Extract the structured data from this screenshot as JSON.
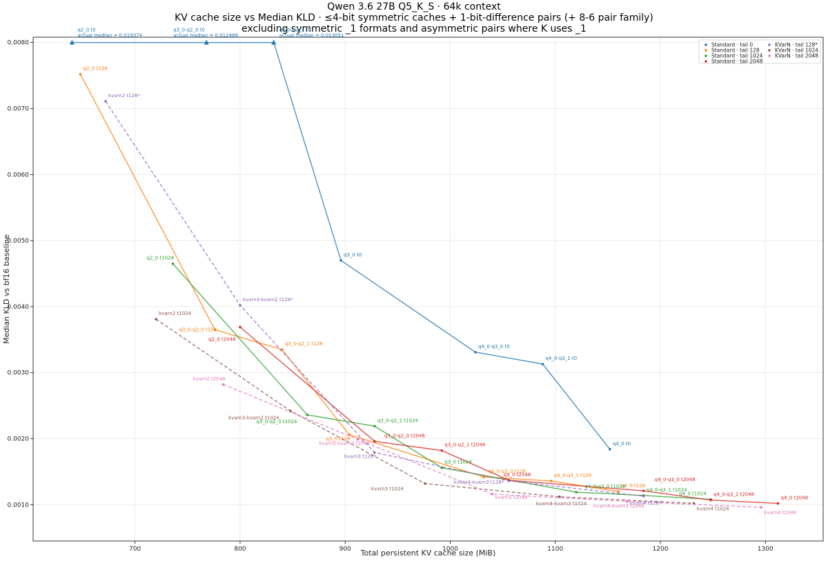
{
  "chart_data": {
    "type": "line",
    "title_lines": [
      "Qwen 3.6 27B Q5_K_S · 64k context",
      "KV cache size vs Median KLD · ≤4-bit symmetric caches + 1-bit-difference pairs (+ 8-6 pair family)",
      "excluding symmetric _1 formats and asymmetric pairs where K uses _1"
    ],
    "xlabel": "Total persistent KV cache size (MiB)",
    "ylabel": "Median KLD vs bf16 baseline",
    "xlim": [
      603,
      1355
    ],
    "ylim": [
      0.00045,
      0.00808
    ],
    "xticks": [
      700,
      800,
      900,
      1000,
      1100,
      1200,
      1300
    ],
    "yticks": [
      0.001,
      0.002,
      0.003,
      0.004,
      0.005,
      0.006,
      0.007,
      0.008
    ],
    "ytick_labels": [
      "0.0010",
      "0.0020",
      "0.0030",
      "0.0040",
      "0.0050",
      "0.0060",
      "0.0070",
      "0.0080"
    ],
    "grid": true,
    "legend_position": "top-right",
    "series": [
      {
        "name": "Standard · tail 0",
        "color": "#1f77b4",
        "dash": false,
        "points": [
          {
            "x": 640,
            "y": 0.008,
            "label": "q2_0 t0",
            "extra": "actual median = 0.019374",
            "capped": true
          },
          {
            "x": 768,
            "y": 0.008,
            "label": "q3_0-q2_0 t0",
            "extra": "actual median = 0.012489",
            "capped": true
          },
          {
            "x": 832,
            "y": 0.008,
            "label": "q3_0-q2_1 t0",
            "extra": "actual median = 0.013051",
            "capped": true
          },
          {
            "x": 896,
            "y": 0.0047,
            "label": "q3_0 t0"
          },
          {
            "x": 1024,
            "y": 0.00331,
            "label": "q4_0-q3_0 t0"
          },
          {
            "x": 1088,
            "y": 0.00313,
            "label": "q4_0-q3_1 t0"
          },
          {
            "x": 1152,
            "y": 0.00184,
            "label": "q4_0 t0"
          }
        ]
      },
      {
        "name": "Standard · tail 128",
        "color": "#ff7f0e",
        "dash": false,
        "points": [
          {
            "x": 648,
            "y": 0.00752,
            "label": "q2_0 t128"
          },
          {
            "x": 776,
            "y": 0.00365,
            "label": "q3_0-q2_0 t128"
          },
          {
            "x": 840,
            "y": 0.00335,
            "label": "q3_0-q2_1 t128"
          },
          {
            "x": 904,
            "y": 0.00206,
            "label": "q3_0 t128"
          },
          {
            "x": 1032,
            "y": 0.00142,
            "label": "q4_0-q3_0 t128"
          },
          {
            "x": 1096,
            "y": 0.00136,
            "label": "q4_0-q3_1 t128"
          },
          {
            "x": 1160,
            "y": 0.0012,
            "label": "q4_0 t128"
          }
        ]
      },
      {
        "name": "Standard · tail 1024",
        "color": "#2ca02c",
        "dash": false,
        "points": [
          {
            "x": 736,
            "y": 0.00465,
            "label": "q2_0 t1024"
          },
          {
            "x": 864,
            "y": 0.00236,
            "label": "q3_0-q2_0 t1024"
          },
          {
            "x": 928,
            "y": 0.00219,
            "label": "q3_0-q2_1 t1024"
          },
          {
            "x": 992,
            "y": 0.00156,
            "label": "q3_0 t1024"
          },
          {
            "x": 1120,
            "y": 0.00119,
            "label": "q4_0-q3_0 t1024"
          },
          {
            "x": 1184,
            "y": 0.00114,
            "label": "q4_0-q3_1 t1024"
          },
          {
            "x": 1248,
            "y": 0.00108,
            "label": "q4_0 t1024"
          }
        ]
      },
      {
        "name": "Standard · tail 2048",
        "color": "#d62728",
        "dash": false,
        "points": [
          {
            "x": 800,
            "y": 0.00369,
            "label": "q2_0 t2048"
          },
          {
            "x": 928,
            "y": 0.00196,
            "label": "q3_0-q2_0 t2048"
          },
          {
            "x": 992,
            "y": 0.00182,
            "label": "q3_0-q2_1 t2048"
          },
          {
            "x": 1056,
            "y": 0.00137,
            "label": "q3_0 t2048"
          },
          {
            "x": 1184,
            "y": 0.00121,
            "label": "q4_0-q3_0 t2048"
          },
          {
            "x": 1248,
            "y": 0.00107,
            "label": "q4_0-q3_1 t2048"
          },
          {
            "x": 1312,
            "y": 0.00102,
            "label": "q4_0 t2048"
          }
        ]
      },
      {
        "name": "KVarN · tail 128*",
        "color": "#9467bd",
        "dash": true,
        "points": [
          {
            "x": 672,
            "y": 0.00711,
            "label": "kvarn2 t128*"
          },
          {
            "x": 800,
            "y": 0.00402,
            "label": "kvarn3-kvarn2 t128*"
          },
          {
            "x": 928,
            "y": 0.00179,
            "label": "kvarn3 t128*"
          },
          {
            "x": 1056,
            "y": 0.00136,
            "label": "kvarn4-kvarn3 t128*"
          },
          {
            "x": 1184,
            "y": 0.00113,
            "label": "kvarn4 t128*"
          }
        ]
      },
      {
        "name": "KVarN · tail 1024",
        "color": "#8c564b",
        "dash": true,
        "points": [
          {
            "x": 720,
            "y": 0.00381,
            "label": "kvarn2 t1024"
          },
          {
            "x": 848,
            "y": 0.00242,
            "label": "kvarn3-kvarn2 t1024"
          },
          {
            "x": 976,
            "y": 0.00132,
            "label": "kvarn3 t1024"
          },
          {
            "x": 1104,
            "y": 0.00112,
            "label": "kvarn4-kvarn3 t1024"
          },
          {
            "x": 1232,
            "y": 0.00102,
            "label": "kvarn4 t1024"
          }
        ]
      },
      {
        "name": "KVarN · tail 2048",
        "color": "#e377c2",
        "dash": true,
        "points": [
          {
            "x": 784,
            "y": 0.00282,
            "label": "kvarn2 t2048"
          },
          {
            "x": 912,
            "y": 0.00199,
            "label": "kvarn3-kvarn2 t2048"
          },
          {
            "x": 1040,
            "y": 0.00116,
            "label": "kvarn3 t2048"
          },
          {
            "x": 1168,
            "y": 0.00105,
            "label": "kvarn4-kvarn3 t2048"
          },
          {
            "x": 1296,
            "y": 0.00096,
            "label": "kvarn4 t2048"
          }
        ]
      }
    ]
  }
}
